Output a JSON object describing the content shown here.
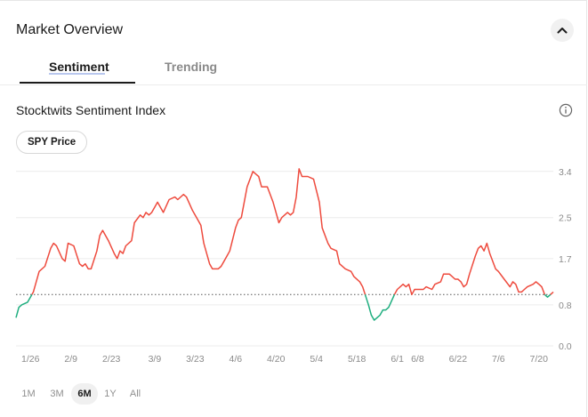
{
  "header": {
    "title": "Market Overview",
    "collapse_icon": "chevron-up-icon"
  },
  "tabs": [
    {
      "label": "Sentiment",
      "active": true
    },
    {
      "label": "Trending",
      "active": false
    }
  ],
  "chart_section": {
    "title": "Stocktwits Sentiment Index",
    "info_icon": "info-icon",
    "overlay_button": "SPY Price"
  },
  "ranges": [
    {
      "label": "1M",
      "active": false
    },
    {
      "label": "3M",
      "active": false
    },
    {
      "label": "6M",
      "active": true
    },
    {
      "label": "1Y",
      "active": false
    },
    {
      "label": "All",
      "active": false
    }
  ],
  "colors": {
    "above": "#ee4b3e",
    "below": "#1fae7f",
    "baseline": "#555555",
    "grid": "#ececec",
    "axis_text": "#8a8a8a"
  },
  "chart_data": {
    "type": "line",
    "title": "",
    "xlabel": "",
    "ylabel": "",
    "x_ticks": [
      "1/26",
      "2/9",
      "2/23",
      "3/9",
      "3/23",
      "4/6",
      "4/20",
      "5/4",
      "5/18",
      "6/1",
      "6/8",
      "6/22",
      "7/6",
      "7/20"
    ],
    "y_ticks": [
      3.4,
      2.5,
      1.7,
      0.8,
      0.0
    ],
    "ylim": [
      0,
      3.5
    ],
    "baseline": 1.0,
    "grid": true,
    "series": [
      {
        "points": [
          [
            "1/21",
            0.55
          ],
          [
            "1/22",
            0.75
          ],
          [
            "1/23",
            0.8
          ],
          [
            "1/25",
            0.85
          ],
          [
            "1/27",
            1.05
          ],
          [
            "1/29",
            1.45
          ],
          [
            "1/31",
            1.55
          ],
          [
            "2/2",
            1.9
          ],
          [
            "2/3",
            2.0
          ],
          [
            "2/4",
            1.95
          ],
          [
            "2/6",
            1.7
          ],
          [
            "2/7",
            1.65
          ],
          [
            "2/8",
            2.0
          ],
          [
            "2/10",
            1.95
          ],
          [
            "2/12",
            1.6
          ],
          [
            "2/13",
            1.55
          ],
          [
            "2/14",
            1.6
          ],
          [
            "2/15",
            1.5
          ],
          [
            "2/16",
            1.5
          ],
          [
            "2/18",
            1.85
          ],
          [
            "2/19",
            2.15
          ],
          [
            "2/20",
            2.25
          ],
          [
            "2/22",
            2.05
          ],
          [
            "2/24",
            1.8
          ],
          [
            "2/25",
            1.7
          ],
          [
            "2/26",
            1.85
          ],
          [
            "2/27",
            1.8
          ],
          [
            "2/28",
            1.95
          ],
          [
            "3/1",
            2.05
          ],
          [
            "3/2",
            2.4
          ],
          [
            "3/4",
            2.55
          ],
          [
            "3/5",
            2.5
          ],
          [
            "3/6",
            2.6
          ],
          [
            "3/7",
            2.55
          ],
          [
            "3/8",
            2.6
          ],
          [
            "3/10",
            2.8
          ],
          [
            "3/11",
            2.7
          ],
          [
            "3/12",
            2.6
          ],
          [
            "3/14",
            2.85
          ],
          [
            "3/16",
            2.9
          ],
          [
            "3/17",
            2.85
          ],
          [
            "3/19",
            2.95
          ],
          [
            "3/20",
            2.9
          ],
          [
            "3/22",
            2.65
          ],
          [
            "3/24",
            2.45
          ],
          [
            "3/25",
            2.35
          ],
          [
            "3/26",
            2.0
          ],
          [
            "3/28",
            1.6
          ],
          [
            "3/29",
            1.5
          ],
          [
            "3/31",
            1.5
          ],
          [
            "4/1",
            1.55
          ],
          [
            "4/3",
            1.75
          ],
          [
            "4/4",
            1.85
          ],
          [
            "4/6",
            2.3
          ],
          [
            "4/7",
            2.45
          ],
          [
            "4/8",
            2.5
          ],
          [
            "4/10",
            3.1
          ],
          [
            "4/12",
            3.4
          ],
          [
            "4/13",
            3.35
          ],
          [
            "4/14",
            3.3
          ],
          [
            "4/15",
            3.1
          ],
          [
            "4/17",
            3.1
          ],
          [
            "4/19",
            2.8
          ],
          [
            "4/21",
            2.4
          ],
          [
            "4/22",
            2.5
          ],
          [
            "4/24",
            2.6
          ],
          [
            "4/25",
            2.55
          ],
          [
            "4/26",
            2.6
          ],
          [
            "4/27",
            2.9
          ],
          [
            "4/28",
            3.45
          ],
          [
            "4/29",
            3.3
          ],
          [
            "5/1",
            3.3
          ],
          [
            "5/3",
            3.25
          ],
          [
            "5/5",
            2.8
          ],
          [
            "5/6",
            2.3
          ],
          [
            "5/8",
            2.0
          ],
          [
            "5/9",
            1.9
          ],
          [
            "5/11",
            1.85
          ],
          [
            "5/12",
            1.6
          ],
          [
            "5/14",
            1.5
          ],
          [
            "5/16",
            1.45
          ],
          [
            "5/17",
            1.35
          ],
          [
            "5/19",
            1.25
          ],
          [
            "5/20",
            1.15
          ],
          [
            "5/22",
            0.8
          ],
          [
            "5/23",
            0.6
          ],
          [
            "5/24",
            0.5
          ],
          [
            "5/26",
            0.6
          ],
          [
            "5/27",
            0.7
          ],
          [
            "5/28",
            0.7
          ],
          [
            "5/29",
            0.75
          ],
          [
            "5/31",
            1.0
          ],
          [
            "6/1",
            1.1
          ],
          [
            "6/3",
            1.2
          ],
          [
            "6/4",
            1.15
          ],
          [
            "6/5",
            1.2
          ],
          [
            "6/6",
            1.0
          ],
          [
            "6/7",
            1.1
          ],
          [
            "6/8",
            1.1
          ],
          [
            "6/10",
            1.1
          ],
          [
            "6/11",
            1.15
          ],
          [
            "6/13",
            1.1
          ],
          [
            "6/14",
            1.2
          ],
          [
            "6/16",
            1.25
          ],
          [
            "6/17",
            1.4
          ],
          [
            "6/18",
            1.4
          ],
          [
            "6/19",
            1.4
          ],
          [
            "6/21",
            1.3
          ],
          [
            "6/22",
            1.3
          ],
          [
            "6/23",
            1.25
          ],
          [
            "6/24",
            1.15
          ],
          [
            "6/25",
            1.2
          ],
          [
            "6/26",
            1.4
          ],
          [
            "6/28",
            1.75
          ],
          [
            "6/29",
            1.9
          ],
          [
            "6/30",
            1.95
          ],
          [
            "7/1",
            1.85
          ],
          [
            "7/2",
            2.0
          ],
          [
            "7/3",
            1.8
          ],
          [
            "7/5",
            1.5
          ],
          [
            "7/6",
            1.45
          ],
          [
            "7/8",
            1.3
          ],
          [
            "7/10",
            1.15
          ],
          [
            "7/11",
            1.25
          ],
          [
            "7/12",
            1.2
          ],
          [
            "7/13",
            1.05
          ],
          [
            "7/14",
            1.05
          ],
          [
            "7/15",
            1.1
          ],
          [
            "7/16",
            1.15
          ],
          [
            "7/18",
            1.2
          ],
          [
            "7/19",
            1.25
          ],
          [
            "7/20",
            1.2
          ],
          [
            "7/21",
            1.15
          ],
          [
            "7/22",
            1.0
          ],
          [
            "7/23",
            0.95
          ],
          [
            "7/24",
            1.0
          ],
          [
            "7/25",
            1.05
          ]
        ]
      }
    ]
  }
}
